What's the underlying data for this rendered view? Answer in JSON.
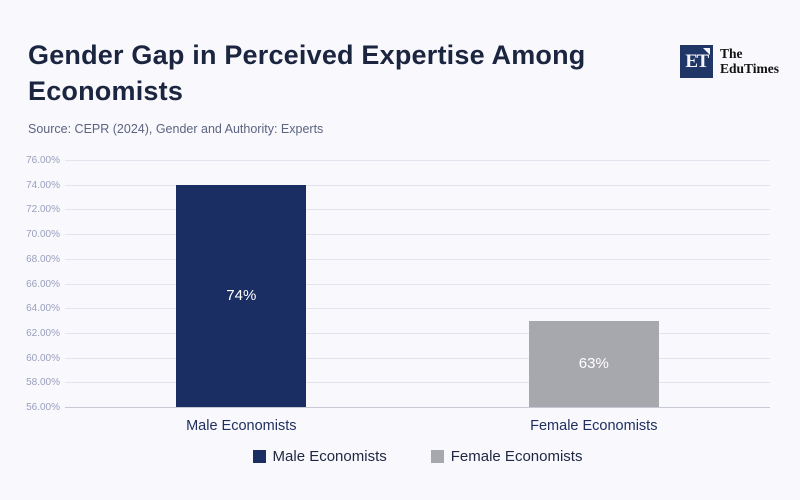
{
  "header": {
    "title": "Gender Gap in Perceived Expertise Among Economists",
    "source": "Source: CEPR (2024), Gender and Authority: Experts"
  },
  "logo": {
    "monogram": "ET",
    "name_line1": "The",
    "name_line2": "EduTimes"
  },
  "colors": {
    "background": "#f8f8fd",
    "male_bar": "#1b2e63",
    "female_bar": "#a7a7ae",
    "title_text": "#1b2540",
    "source_text": "#5c6480",
    "ytick_text": "#9aa0bc",
    "xtick_text": "#1f3060",
    "legend_text": "#1e2742",
    "gridline": "#e4e4ee",
    "axis_line": "#c6c8d4"
  },
  "chart_data": {
    "type": "bar",
    "title": "Gender Gap in Perceived Expertise Among Economists",
    "xlabel": "",
    "ylabel": "",
    "categories": [
      "Male Economists",
      "Female Economists"
    ],
    "values": [
      74,
      63
    ],
    "bar_labels": [
      "74%",
      "63%"
    ],
    "bar_colors": [
      "#1b2e63",
      "#a7a7ae"
    ],
    "ylim": [
      56,
      76
    ],
    "ytick_values": [
      76,
      74,
      72,
      70,
      68,
      66,
      64,
      62,
      60,
      58,
      56
    ],
    "ytick_labels": [
      "76.00%",
      "74.00%",
      "72.00%",
      "70.00%",
      "68.00%",
      "66.00%",
      "64.00%",
      "62.00%",
      "60.00%",
      "58.00%",
      "56.00%"
    ],
    "grid": true,
    "legend": [
      "Male Economists",
      "Female Economists"
    ],
    "legend_position": "bottom"
  }
}
